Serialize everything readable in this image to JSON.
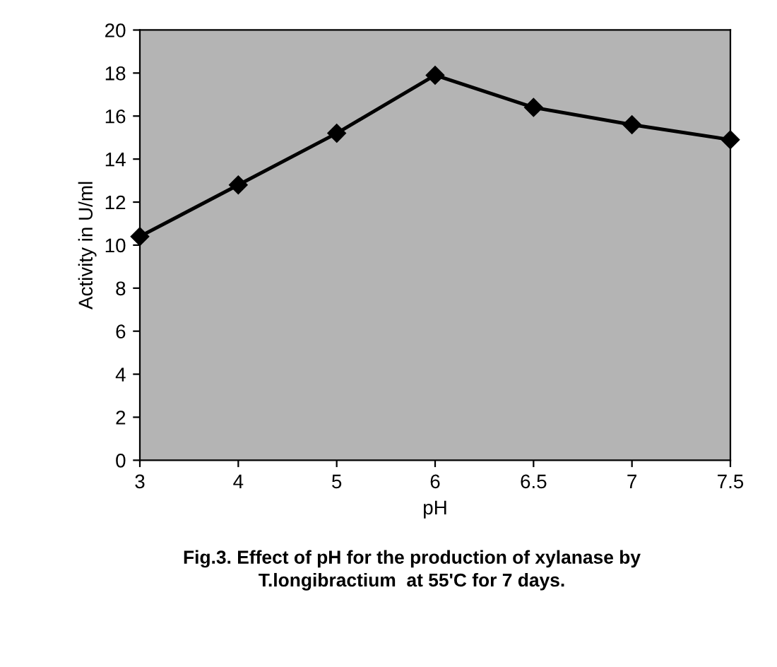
{
  "chart_data": {
    "type": "line",
    "categories": [
      "3",
      "4",
      "5",
      "6",
      "6.5",
      "7",
      "7.5"
    ],
    "series": [
      {
        "color": "#000000",
        "values": [
          10.4,
          12.8,
          15.2,
          17.9,
          16.4,
          15.6,
          14.9
        ]
      }
    ],
    "xlabel": "pH",
    "ylabel": "Activity in U/ml",
    "ylim": [
      0,
      20
    ],
    "yticks": [
      0,
      2,
      4,
      6,
      8,
      10,
      12,
      14,
      16,
      18,
      20
    ],
    "marker": "diamond",
    "line_style": "solid",
    "legend": false,
    "annotations": [
      "Fig.3. Effect of pH for the production of xylanase by\nT.longibractium  at 55'C for 7 days."
    ]
  }
}
